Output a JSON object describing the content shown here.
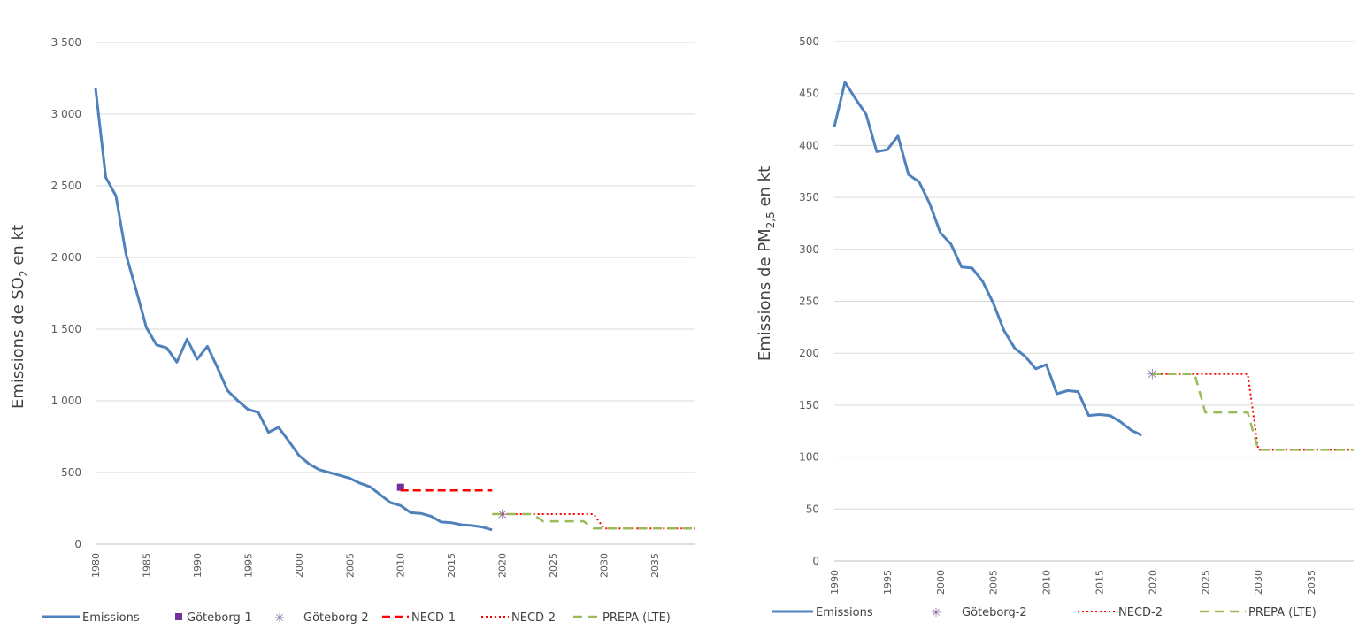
{
  "chart_data": [
    {
      "type": "line",
      "ylabel": {
        "pre": "Emissions de SO",
        "sub": "2",
        "post": " en kt"
      },
      "xlim": [
        1980,
        2039
      ],
      "ylim": [
        0,
        3500
      ],
      "yticks": [
        0,
        500,
        1000,
        1500,
        2000,
        2500,
        3000,
        3500
      ],
      "ytick_labels": [
        "0",
        "500",
        "1 000",
        "1 500",
        "2 000",
        "2 500",
        "3 000",
        "3 500"
      ],
      "xticks": [
        1980,
        1985,
        1990,
        1995,
        2000,
        2005,
        2010,
        2015,
        2020,
        2025,
        2030,
        2035
      ],
      "xtick_labels": [
        "1980",
        "1985",
        "1990",
        "1995",
        "2000",
        "2005",
        "2010",
        "2015",
        "2020",
        "2025",
        "2030",
        "2035"
      ],
      "grid": "horizontal",
      "legend_position": "bottom",
      "series": [
        {
          "name": "Emissions",
          "style": "solid",
          "color": "#4f81bd",
          "x": [
            1980,
            1981,
            1982,
            1983,
            1984,
            1985,
            1986,
            1987,
            1988,
            1989,
            1990,
            1991,
            1992,
            1993,
            1994,
            1995,
            1996,
            1997,
            1998,
            1999,
            2000,
            2001,
            2002,
            2003,
            2004,
            2005,
            2006,
            2007,
            2008,
            2009,
            2010,
            2011,
            2012,
            2013,
            2014,
            2015,
            2016,
            2017,
            2018,
            2019
          ],
          "y": [
            3180,
            2560,
            2430,
            2020,
            1770,
            1510,
            1390,
            1370,
            1270,
            1430,
            1290,
            1380,
            1230,
            1070,
            1000,
            940,
            920,
            780,
            815,
            720,
            620,
            560,
            520,
            500,
            480,
            460,
            425,
            400,
            345,
            290,
            270,
            220,
            215,
            195,
            155,
            150,
            135,
            130,
            120,
            100
          ]
        },
        {
          "name": "Göteborg-1",
          "style": "square",
          "color": "#7030a0",
          "x": [
            2010
          ],
          "y": [
            397
          ]
        },
        {
          "name": "Göteborg-2",
          "style": "star",
          "color": "#8064a2",
          "x": [
            2020
          ],
          "y": [
            210
          ]
        },
        {
          "name": "NECD-1",
          "style": "dashed",
          "color": "#ff0000",
          "x": [
            2010,
            2019
          ],
          "y": [
            375,
            375
          ]
        },
        {
          "name": "NECD-2",
          "style": "dotted",
          "color": "#ff0000",
          "x": [
            2020,
            2029,
            2030,
            2039
          ],
          "y": [
            210,
            210,
            110,
            110
          ]
        },
        {
          "name": "PREPA (LTE)",
          "style": "longdash",
          "color": "#9bbb59",
          "x": [
            2019,
            2023,
            2024,
            2028,
            2029,
            2039
          ],
          "y": [
            210,
            210,
            160,
            160,
            110,
            110
          ]
        }
      ]
    },
    {
      "type": "line",
      "ylabel": {
        "pre": "Emissions de PM",
        "sub": "2,5",
        "post": " en kt"
      },
      "xlim": [
        1990,
        2039
      ],
      "ylim": [
        0,
        500
      ],
      "yticks": [
        0,
        50,
        100,
        150,
        200,
        250,
        300,
        350,
        400,
        450,
        500
      ],
      "ytick_labels": [
        "0",
        "50",
        "100",
        "150",
        "200",
        "250",
        "300",
        "350",
        "400",
        "450",
        "500"
      ],
      "xticks": [
        1990,
        1995,
        2000,
        2005,
        2010,
        2015,
        2020,
        2025,
        2030,
        2035
      ],
      "xtick_labels": [
        "1990",
        "1995",
        "2000",
        "2005",
        "2010",
        "2015",
        "2020",
        "2025",
        "2030",
        "2035"
      ],
      "grid": "horizontal",
      "legend_position": "bottom",
      "series": [
        {
          "name": "Emissions",
          "style": "solid",
          "color": "#4f81bd",
          "x": [
            1990,
            1991,
            1992,
            1993,
            1994,
            1995,
            1996,
            1997,
            1998,
            1999,
            2000,
            2001,
            2002,
            2003,
            2004,
            2005,
            2006,
            2007,
            2008,
            2009,
            2010,
            2011,
            2012,
            2013,
            2014,
            2015,
            2016,
            2017,
            2018,
            2019
          ],
          "y": [
            418,
            461,
            445,
            430,
            394,
            396,
            409,
            372,
            365,
            344,
            316,
            305,
            283,
            282,
            269,
            248,
            222,
            205,
            197,
            185,
            189,
            161,
            164,
            163,
            140,
            141,
            140,
            134,
            126,
            121
          ]
        },
        {
          "name": "Göteborg-2",
          "style": "star",
          "color": "#8064a2",
          "x": [
            2020
          ],
          "y": [
            180
          ]
        },
        {
          "name": "NECD-2",
          "style": "dotted",
          "color": "#ff0000",
          "x": [
            2020,
            2029,
            2030,
            2039
          ],
          "y": [
            180,
            180,
            107,
            107
          ]
        },
        {
          "name": "PREPA (LTE)",
          "style": "longdash",
          "color": "#9bbb59",
          "x": [
            2020,
            2024,
            2025,
            2029,
            2030,
            2039
          ],
          "y": [
            180,
            180,
            143,
            143,
            107,
            107
          ]
        }
      ]
    }
  ]
}
